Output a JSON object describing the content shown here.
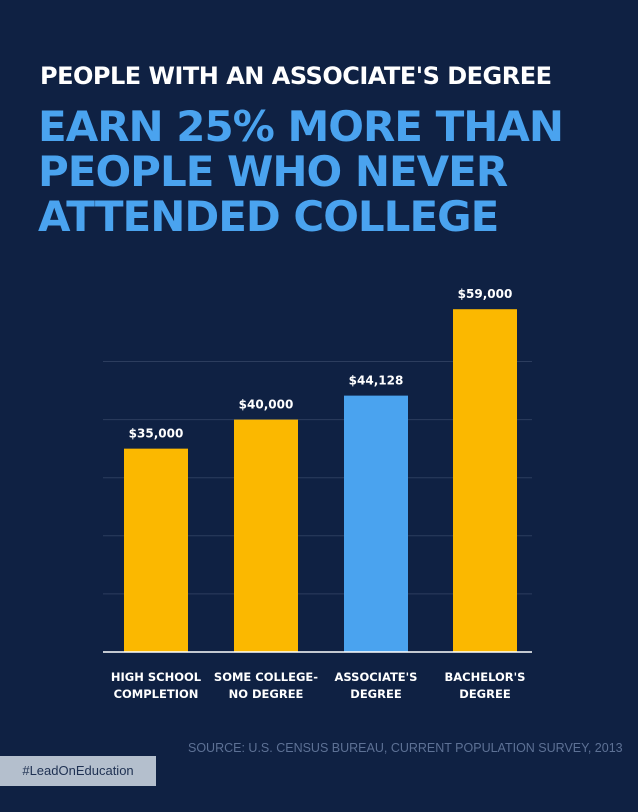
{
  "headline": {
    "line1": "PEOPLE WITH AN ASSOCIATE'S DEGREE",
    "line2": "EARN 25% MORE THAN\nPEOPLE WHO NEVER\nATTENDED COLLEGE"
  },
  "chart_data": {
    "type": "bar",
    "categories": [
      [
        "HIGH SCHOOL",
        "COMPLETION"
      ],
      [
        "SOME COLLEGE-",
        "NO DEGREE"
      ],
      [
        "ASSOCIATE'S",
        "DEGREE"
      ],
      [
        "BACHELOR'S",
        "DEGREE"
      ]
    ],
    "values": [
      35000,
      40000,
      44128,
      59000
    ],
    "data_labels": [
      "$35,000",
      "$40,000",
      "$44,128",
      "$59,000"
    ],
    "highlight_index": 2,
    "ylim": [
      0,
      60000
    ],
    "grid": true,
    "colors": {
      "bar": "#fbb800",
      "highlight": "#4aa3ef",
      "grid": "#2c3d5e",
      "baseline": "#ffffff",
      "label": "#ffffff"
    }
  },
  "source": "SOURCE: U.S. CENSUS BUREAU, CURRENT POPULATION SURVEY, 2013",
  "hashtag": "#LeadOnEducation"
}
